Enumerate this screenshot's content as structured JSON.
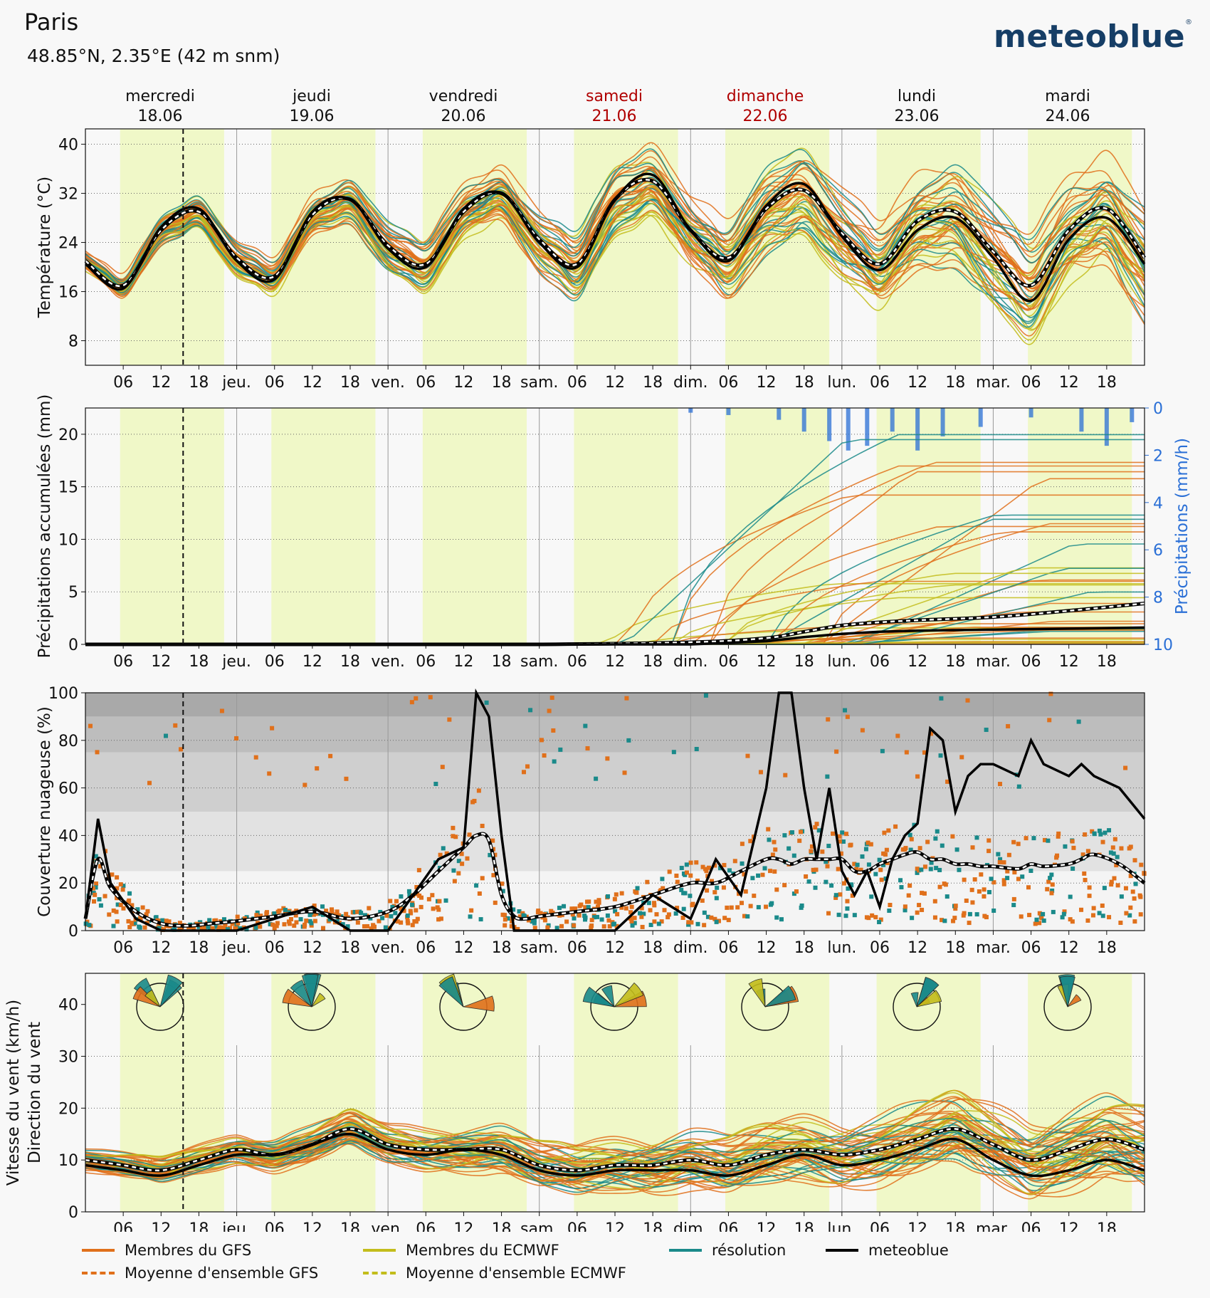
{
  "header": {
    "city": "Paris",
    "coords": "48.85°N, 2.35°E (42 m snm)",
    "logo": "meteoblue",
    "logo_mark": "®"
  },
  "days": [
    {
      "name": "mercredi",
      "date": "18.06",
      "weekend": false
    },
    {
      "name": "jeudi",
      "date": "19.06",
      "weekend": false
    },
    {
      "name": "vendredi",
      "date": "20.06",
      "weekend": false
    },
    {
      "name": "samedi",
      "date": "21.06",
      "weekend": true
    },
    {
      "name": "dimanche",
      "date": "22.06",
      "weekend": true
    },
    {
      "name": "lundi",
      "date": "23.06",
      "weekend": false
    },
    {
      "name": "mardi",
      "date": "24.06",
      "weekend": false
    }
  ],
  "x_ticks": [
    "06",
    "12",
    "18",
    "jeu.",
    "06",
    "12",
    "18",
    "ven.",
    "06",
    "12",
    "18",
    "sam.",
    "06",
    "12",
    "18",
    "dim.",
    "06",
    "12",
    "18",
    "lun.",
    "06",
    "12",
    "18",
    "mar.",
    "06",
    "12",
    "18"
  ],
  "colors": {
    "gfs": "#e0701b",
    "ecmwf": "#c3bd1c",
    "resolution": "#1a8a8a",
    "meteoblue": "#000000",
    "daylight": "#f0f8c8",
    "weekend_label": "#b00000",
    "precip_bar": "#2a6fd6"
  },
  "chart_data": [
    {
      "type": "line",
      "panel": "temperature",
      "ylabel": "Température (°C)",
      "yticks": [
        8,
        16,
        24,
        32,
        40
      ],
      "ylim": [
        4,
        42.5
      ],
      "xlim_hours": [
        0,
        168
      ],
      "x_hours": [
        0,
        6,
        12,
        18,
        24,
        30,
        36,
        42,
        48,
        54,
        60,
        66,
        72,
        78,
        84,
        90,
        96,
        102,
        108,
        114,
        120,
        126,
        132,
        138,
        144,
        150,
        156,
        162,
        168
      ],
      "series": [
        {
          "name": "meteoblue",
          "values": [
            20.5,
            16.5,
            26.5,
            29.5,
            21,
            18,
            29,
            31,
            23,
            20,
            29.5,
            32,
            24,
            20,
            31,
            35,
            26,
            21,
            30,
            33.5,
            25,
            19.5,
            26,
            28,
            21.5,
            14.5,
            24.5,
            28,
            20.5
          ]
        },
        {
          "name": "Moyenne d'ensemble GFS",
          "values": [
            21,
            17,
            26,
            29,
            21.5,
            18.5,
            28.5,
            31,
            23.5,
            20.5,
            29,
            32,
            24.5,
            20.5,
            31,
            34,
            26,
            21.5,
            29.5,
            32.5,
            25.5,
            20.5,
            27.5,
            29,
            22.5,
            17,
            26,
            29.5,
            21.5
          ]
        }
      ]
    },
    {
      "type": "line",
      "panel": "precipitation",
      "ylabel": "Précipitations accumulées (mm)",
      "y2label": "Précipitations (mm/h)",
      "yticks": [
        0,
        5,
        10,
        15,
        20
      ],
      "y2ticks": [
        0,
        2,
        4,
        6,
        8,
        10
      ],
      "ylim": [
        0,
        22.5
      ],
      "x_hours": [
        0,
        24,
        48,
        72,
        96,
        108,
        114,
        120,
        126,
        132,
        144,
        156,
        168
      ],
      "series": [
        {
          "name": "meteoblue",
          "values": [
            0,
            0,
            0,
            0,
            0,
            0.3,
            0.7,
            1.0,
            1.2,
            1.3,
            1.4,
            1.5,
            1.6
          ]
        },
        {
          "name": "Moyenne d'ensemble GFS",
          "values": [
            0,
            0,
            0,
            0,
            0.2,
            0.6,
            1.2,
            1.8,
            2.1,
            2.3,
            2.6,
            3.2,
            3.9
          ]
        }
      ],
      "hourly_precip_mmh": [
        {
          "h": 96,
          "v": 0.2
        },
        {
          "h": 102,
          "v": 0.3
        },
        {
          "h": 110,
          "v": 0.5
        },
        {
          "h": 114,
          "v": 1.0
        },
        {
          "h": 118,
          "v": 1.4
        },
        {
          "h": 121,
          "v": 1.8
        },
        {
          "h": 124,
          "v": 1.6
        },
        {
          "h": 128,
          "v": 1.0
        },
        {
          "h": 132,
          "v": 1.8
        },
        {
          "h": 136,
          "v": 1.2
        },
        {
          "h": 142,
          "v": 0.8
        },
        {
          "h": 150,
          "v": 0.4
        },
        {
          "h": 158,
          "v": 1.0
        },
        {
          "h": 162,
          "v": 1.6
        },
        {
          "h": 166,
          "v": 0.6
        }
      ]
    },
    {
      "type": "scatter",
      "panel": "cloud_cover",
      "ylabel": "Couverture nuageuse (%)",
      "yticks": [
        0,
        20,
        40,
        60,
        80,
        100
      ],
      "ylim": [
        0,
        100
      ],
      "x_hours": [
        0,
        2,
        4,
        8,
        12,
        16,
        20,
        24,
        30,
        36,
        42,
        48,
        52,
        56,
        60,
        62,
        64,
        66,
        68,
        70,
        72,
        78,
        84,
        90,
        96,
        100,
        104,
        108,
        110,
        112,
        114,
        116,
        118,
        120,
        122,
        124,
        126,
        128,
        130,
        132,
        134,
        136,
        138,
        140,
        142,
        144,
        148,
        150,
        152,
        156,
        158,
        160,
        164,
        168
      ],
      "series": [
        {
          "name": "meteoblue",
          "values": [
            5,
            47,
            20,
            5,
            0,
            0,
            0,
            0,
            5,
            10,
            0,
            0,
            15,
            30,
            35,
            100,
            90,
            40,
            0,
            0,
            0,
            0,
            0,
            15,
            5,
            30,
            15,
            60,
            100,
            100,
            60,
            30,
            60,
            25,
            15,
            25,
            10,
            30,
            40,
            45,
            85,
            80,
            50,
            65,
            70,
            70,
            65,
            80,
            70,
            65,
            70,
            65,
            60,
            47
          ]
        },
        {
          "name": "Moyenne d'ensemble GFS",
          "values": [
            5,
            30,
            18,
            8,
            3,
            2,
            3,
            4,
            6,
            8,
            5,
            8,
            15,
            25,
            35,
            40,
            38,
            15,
            6,
            5,
            6,
            8,
            10,
            15,
            20,
            20,
            25,
            30,
            30,
            28,
            30,
            30,
            30,
            30,
            25,
            25,
            28,
            30,
            32,
            33,
            30,
            30,
            28,
            28,
            27,
            27,
            26,
            28,
            27,
            28,
            30,
            32,
            28,
            20
          ]
        }
      ],
      "background_bands_percent": [
        25,
        50,
        75,
        90
      ]
    },
    {
      "type": "line",
      "panel": "wind",
      "ylabel": "Vitesse du vent (km/h)",
      "ylabel2": "Direction du vent",
      "yticks": [
        0,
        10,
        20,
        30,
        40
      ],
      "ylim": [
        0,
        46
      ],
      "x_hours": [
        0,
        6,
        12,
        18,
        24,
        30,
        36,
        42,
        48,
        54,
        60,
        66,
        72,
        78,
        84,
        90,
        96,
        102,
        108,
        114,
        120,
        126,
        132,
        138,
        144,
        150,
        156,
        162,
        168
      ],
      "series": [
        {
          "name": "meteoblue",
          "values": [
            9,
            8,
            7,
            9,
            11,
            11,
            13,
            15,
            12,
            11,
            12,
            11,
            8,
            7,
            8,
            8,
            8,
            7,
            9,
            11,
            9,
            10,
            12,
            14,
            10,
            7,
            8,
            10,
            8
          ]
        },
        {
          "name": "Moyenne d'ensemble GFS",
          "values": [
            10,
            9,
            8,
            10,
            12,
            11,
            13,
            16,
            13,
            12,
            12,
            12,
            9,
            8,
            9,
            9,
            10,
            9,
            11,
            12,
            11,
            12,
            14,
            16,
            13,
            10,
            12,
            14,
            12
          ]
        }
      ]
    }
  ],
  "legend": [
    {
      "label": "Membres du GFS",
      "color": "#e0701b",
      "dashed": false
    },
    {
      "label": "Moyenne d'ensemble GFS",
      "color": "#e0701b",
      "dashed": true
    },
    {
      "label": "Membres du ECMWF",
      "color": "#c3bd1c",
      "dashed": false
    },
    {
      "label": "Moyenne d'ensemble ECMWF",
      "color": "#c3bd1c",
      "dashed": true
    },
    {
      "label": "résolution",
      "color": "#1a8a8a",
      "dashed": false
    },
    {
      "label": "meteoblue",
      "color": "#000000",
      "dashed": false
    }
  ]
}
